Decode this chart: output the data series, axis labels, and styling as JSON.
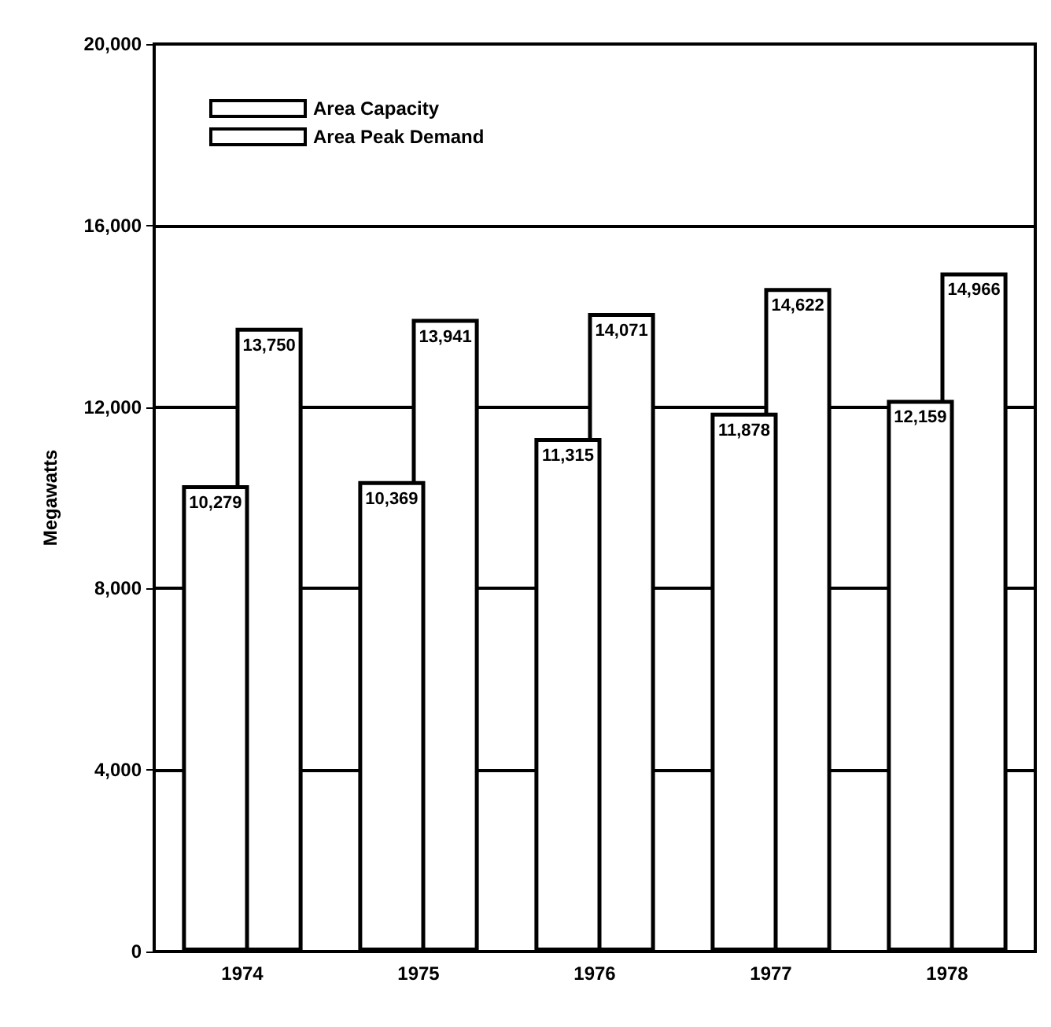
{
  "chart_data": {
    "type": "bar",
    "ylabel": "Megawatts",
    "categories": [
      "1974",
      "1975",
      "1976",
      "1977",
      "1978"
    ],
    "series": [
      {
        "name": "Area Capacity",
        "color": "#ffffff",
        "values": [
          13750,
          13941,
          14071,
          14622,
          14966
        ],
        "value_labels": [
          "13,750",
          "13,941",
          "14,071",
          "14,622",
          "14,966"
        ]
      },
      {
        "name": "Area Peak Demand",
        "color": "#ffffff",
        "values": [
          10279,
          10369,
          11315,
          11878,
          12159
        ],
        "value_labels": [
          "10,279",
          "10,369",
          "11,315",
          "11,878",
          "12,159"
        ]
      }
    ],
    "ylim": [
      0,
      20000
    ],
    "yticks": [
      0,
      {
        "value": 4000,
        "label": "4,000"
      },
      {
        "value": 8000,
        "label": "8,000"
      },
      {
        "value": 12000,
        "label": "12,000"
      },
      {
        "value": 16000,
        "label": "16,000"
      },
      {
        "value": 20000,
        "label": "20,000"
      }
    ],
    "grid": "y",
    "legend": "top left"
  }
}
